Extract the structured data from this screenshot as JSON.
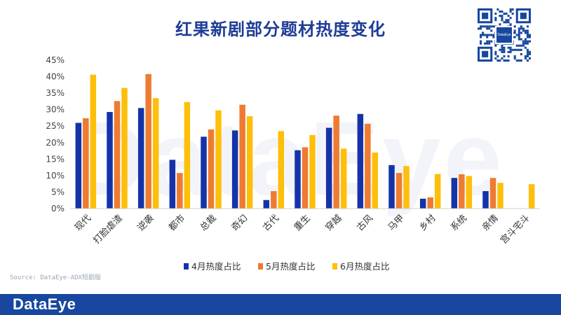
{
  "title": "红果新剧部分题材热度变化",
  "source": "Source: DataEye-ADX短剧版",
  "brand": "DataEye",
  "qr_label": "DataEye",
  "colors": {
    "apr": "#1533a8",
    "may": "#ee7b32",
    "jun": "#fdbf0a",
    "title": "#1f3c97",
    "footer": "#17479e"
  },
  "chart_data": {
    "type": "bar",
    "title": "红果新剧部分题材热度变化",
    "xlabel": "",
    "ylabel": "",
    "ylim": [
      0,
      45
    ],
    "yticks": [
      "0%",
      "5%",
      "10%",
      "15%",
      "20%",
      "25%",
      "30%",
      "35%",
      "40%",
      "45%"
    ],
    "grid": false,
    "legend": "bottom",
    "categories": [
      "现代",
      "打脸虐渣",
      "逆袭",
      "都市",
      "总裁",
      "奇幻",
      "古代",
      "重生",
      "穿越",
      "古风",
      "马甲",
      "乡村",
      "系统",
      "亲情",
      "宫斗宅斗"
    ],
    "series": [
      {
        "name": "4月热度占比",
        "values": [
          26,
          29.3,
          30.5,
          14.8,
          21.8,
          23.7,
          2.6,
          17.7,
          24.5,
          28.7,
          13.2,
          3.0,
          9.3,
          5.3,
          0
        ]
      },
      {
        "name": "5月热度占比",
        "values": [
          27.4,
          32.6,
          40.8,
          10.8,
          24.0,
          31.5,
          5.3,
          18.6,
          28.2,
          25.7,
          10.8,
          3.4,
          10.4,
          9.3,
          0
        ]
      },
      {
        "name": "6月热度占比",
        "values": [
          40.6,
          36.6,
          33.5,
          32.3,
          29.8,
          28.0,
          23.5,
          22.3,
          18.2,
          17.0,
          12.9,
          10.5,
          9.9,
          7.8,
          7.4
        ]
      }
    ]
  }
}
